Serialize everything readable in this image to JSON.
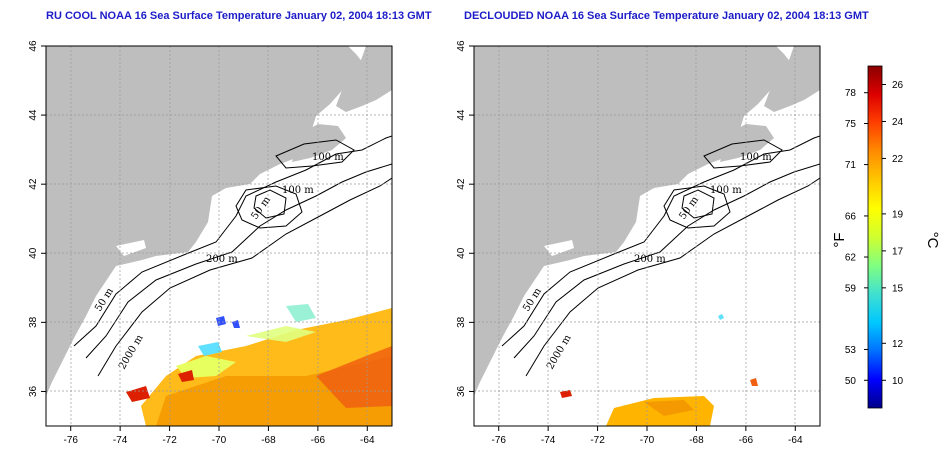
{
  "panels": [
    {
      "id": "left",
      "title": "RU COOL NOAA 16 Sea Surface Temperature January 02, 2004 18:13 GMT"
    },
    {
      "id": "right",
      "title": "DECLOUDED NOAA 16 Sea Surface Temperature January 02, 2004 18:13 GMT"
    }
  ],
  "map": {
    "lon_range": [
      -77,
      -63
    ],
    "lat_range": [
      35,
      46
    ],
    "lon_ticks": [
      "-76",
      "-74",
      "-72",
      "-70",
      "-68",
      "-66",
      "-64"
    ],
    "lat_ticks": [
      "36",
      "38",
      "40",
      "42",
      "44",
      "46"
    ],
    "land_color": "#bebebe",
    "grid": "dotted"
  },
  "contour_labels": {
    "left": [
      "100 m",
      "100 m",
      "50 m",
      "200 m",
      "50 m",
      "2000 m"
    ],
    "right": [
      "100 m",
      "100 m",
      "50 m",
      "200 m",
      "50 m",
      "2000 m"
    ]
  },
  "colorbar": {
    "unit_f": "°F",
    "unit_c": "°C",
    "fahrenheit_labels": [
      "78",
      "75",
      "71",
      "66",
      "62",
      "59",
      "53",
      "50"
    ],
    "celsius_labels": [
      "26",
      "24",
      "22",
      "19",
      "17",
      "15",
      "12",
      "10"
    ],
    "colors": [
      "#00008b",
      "#0000ff",
      "#0070ff",
      "#00c8ff",
      "#40e0d0",
      "#80ff80",
      "#d0ff30",
      "#ffff00",
      "#ffc800",
      "#ff8c00",
      "#ff4000",
      "#dd0000",
      "#8b0000"
    ]
  }
}
